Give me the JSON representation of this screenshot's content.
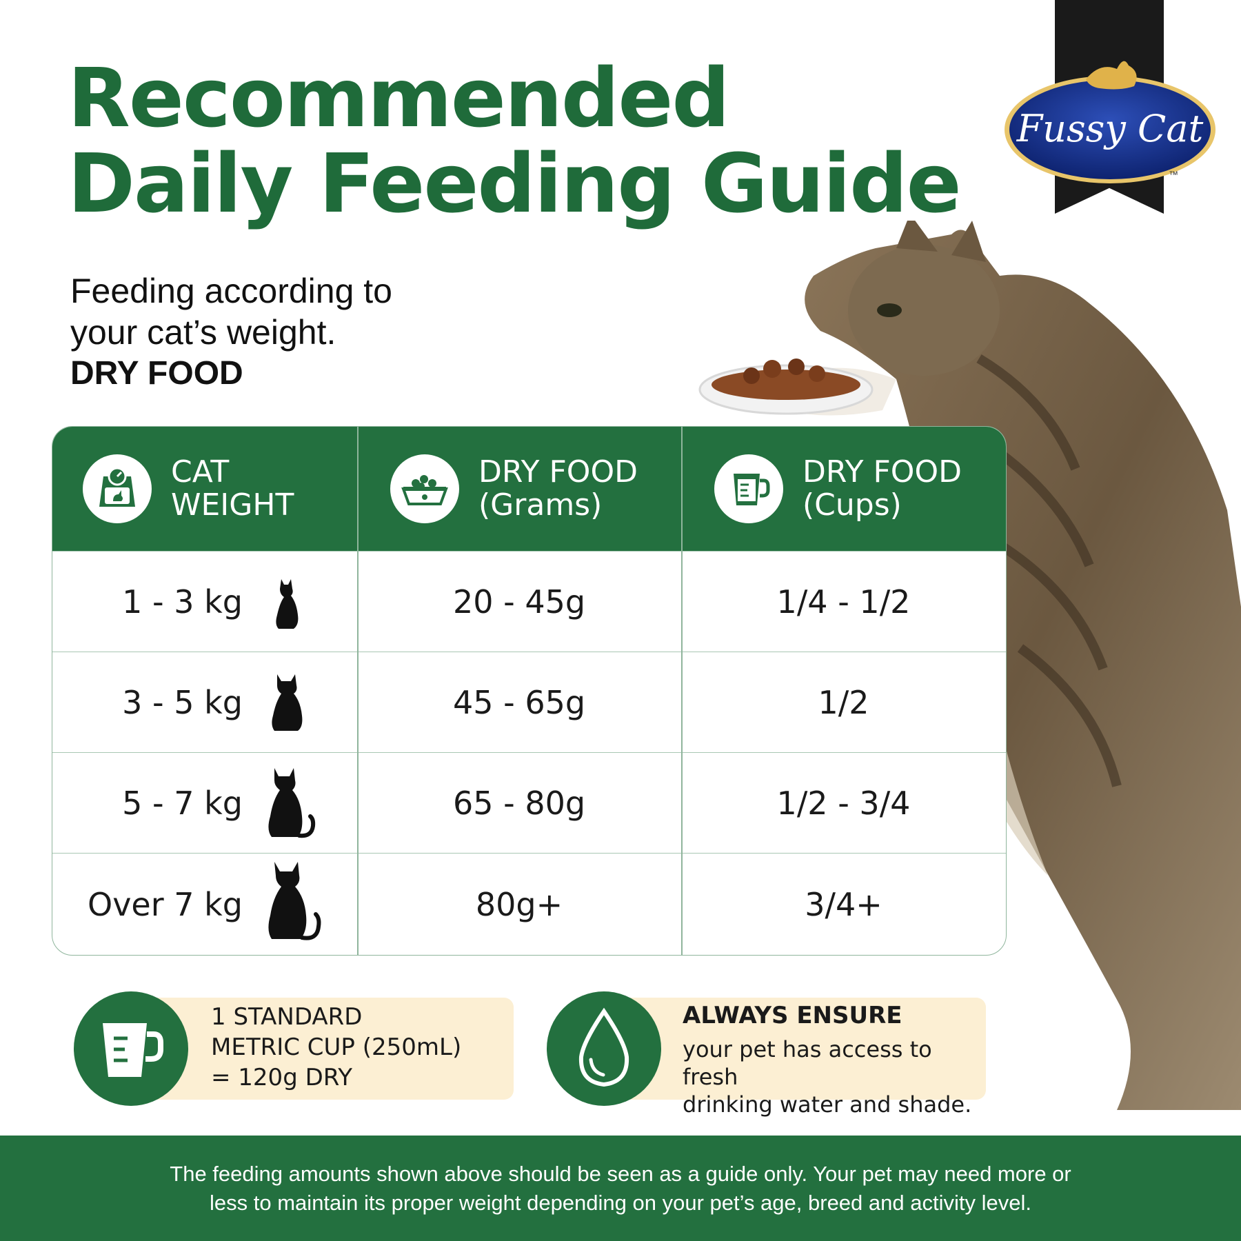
{
  "title_line1": "Recommended",
  "title_line2": "Daily Feeding Guide",
  "subtitle_line1": "Feeding according to",
  "subtitle_line2": "your cat’s weight.",
  "food_type": "DRY FOOD",
  "brand": {
    "name": "Fussy Cat",
    "trademark": "™"
  },
  "colors": {
    "primary_green": "#23703f",
    "title_green": "#1f6b3a",
    "cream": "#fcefd3"
  },
  "table": {
    "headers": [
      {
        "line1": "CAT",
        "line2": "WEIGHT",
        "icon": "scale-icon"
      },
      {
        "line1": "DRY FOOD",
        "line2": "(Grams)",
        "icon": "food-bowl-icon"
      },
      {
        "line1": "DRY FOOD",
        "line2": "(Cups)",
        "icon": "measuring-cup-icon"
      }
    ],
    "rows": [
      {
        "weight": "1 - 3 kg",
        "grams": "20 - 45g",
        "cups": "1/4 - 1/2",
        "icon": "small-cat-icon"
      },
      {
        "weight": "3 - 5 kg",
        "grams": "45 - 65g",
        "cups": "1/2",
        "icon": "medium-cat-icon"
      },
      {
        "weight": "5 - 7 kg",
        "grams": "65 - 80g",
        "cups": "1/2 - 3/4",
        "icon": "large-cat-icon"
      },
      {
        "weight": "Over 7 kg",
        "grams": "80g+",
        "cups": "3/4+",
        "icon": "xlarge-cat-icon"
      }
    ]
  },
  "cup_info": {
    "line1": "1 STANDARD",
    "line2": "METRIC CUP (250mL)",
    "line3": "= 120g DRY"
  },
  "water_info": {
    "title": "ALWAYS ENSURE",
    "line1": "your pet has access to fresh",
    "line2": "drinking water and shade."
  },
  "footer": {
    "line1": "The feeding amounts shown above should be seen as a guide only.  Your pet may need more or",
    "line2": "less to maintain its proper weight depending on your pet’s age, breed and activity level."
  }
}
